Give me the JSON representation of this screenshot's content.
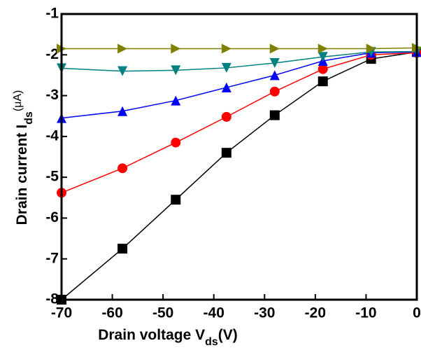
{
  "chart_data": {
    "type": "line",
    "x_label": {
      "main": "Drain voltage V",
      "sub": "ds",
      "unit": "(V)"
    },
    "y_label": {
      "main": "Drain current I",
      "sub": "ds",
      "unit": "(μA)"
    },
    "x": [
      -70,
      -58,
      -47.5,
      -37.5,
      -28,
      -18.5,
      -9,
      0
    ],
    "series": [
      {
        "color": "#000000",
        "marker": "square",
        "values": [
          -8,
          -6.75,
          -5.55,
          -4.4,
          -3.48,
          -2.65,
          -2.1,
          -1.93
        ]
      },
      {
        "color": "#ff0000",
        "marker": "circle",
        "values": [
          -5.38,
          -4.78,
          -4.15,
          -3.52,
          -2.9,
          -2.35,
          -2.0,
          -1.95
        ]
      },
      {
        "color": "#0000ff",
        "marker": "triangle-up",
        "values": [
          -3.55,
          -3.38,
          -3.12,
          -2.8,
          -2.5,
          -2.15,
          -1.95,
          -1.93
        ]
      },
      {
        "color": "#008080",
        "marker": "triangle-down",
        "values": [
          -2.33,
          -2.4,
          -2.38,
          -2.32,
          -2.2,
          -2.05,
          -1.93,
          -1.92
        ]
      },
      {
        "color": "#808000",
        "marker": "triangle-right",
        "values": [
          -1.85,
          -1.85,
          -1.85,
          -1.85,
          -1.85,
          -1.85,
          -1.85,
          -1.83
        ]
      }
    ],
    "xlim": [
      -70,
      0
    ],
    "xticks": [
      -70,
      -60,
      -50,
      -40,
      -30,
      -20,
      -10,
      0
    ],
    "ylim": [
      -8,
      -1
    ],
    "yticks": [
      -1,
      -2,
      -3,
      -4,
      -5,
      -6,
      -7,
      -8
    ],
    "grid": false
  }
}
